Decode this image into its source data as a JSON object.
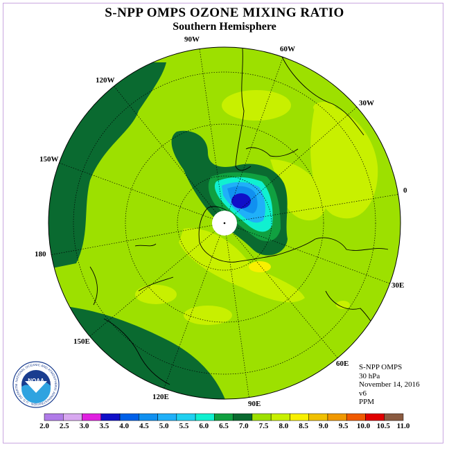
{
  "title": "S-NPP OMPS OZONE MIXING RATIO",
  "subtitle": "Southern Hemisphere",
  "longitude_labels": [
    "90W",
    "60W",
    "30W",
    "0",
    "30E",
    "60E",
    "90E",
    "120E",
    "150E",
    "180",
    "150W",
    "120W"
  ],
  "info": {
    "instrument": "S-NPP OMPS",
    "level": "30 hPa",
    "date": "November 14, 2016",
    "version": "v6",
    "units": "PPM"
  },
  "logo": {
    "text": "NOAA",
    "ring_text": "NATIONAL OCEANIC AND ATMOSPHERIC ADMINISTRATION · U.S. DEPARTMENT OF COMMERCE"
  },
  "colorbar": {
    "labels": [
      "2.0",
      "2.5",
      "3.0",
      "3.5",
      "4.0",
      "4.5",
      "5.0",
      "5.5",
      "6.0",
      "6.5",
      "7.0",
      "7.5",
      "8.0",
      "8.5",
      "9.0",
      "9.5",
      "10.0",
      "10.5",
      "11.0"
    ],
    "colors": [
      "#b07be8",
      "#d8a8f0",
      "#e020e0",
      "#1010c8",
      "#0060e8",
      "#1090f0",
      "#20b0f8",
      "#20d0f0",
      "#10f0d0",
      "#10a040",
      "#0a6a30",
      "#9de000",
      "#c8f000",
      "#f8f000",
      "#f0c000",
      "#f09800",
      "#f05a00",
      "#e00000",
      "#8a5a40"
    ]
  },
  "colors": {
    "background_field": "#9de000",
    "frame": "#c9a6e0"
  }
}
